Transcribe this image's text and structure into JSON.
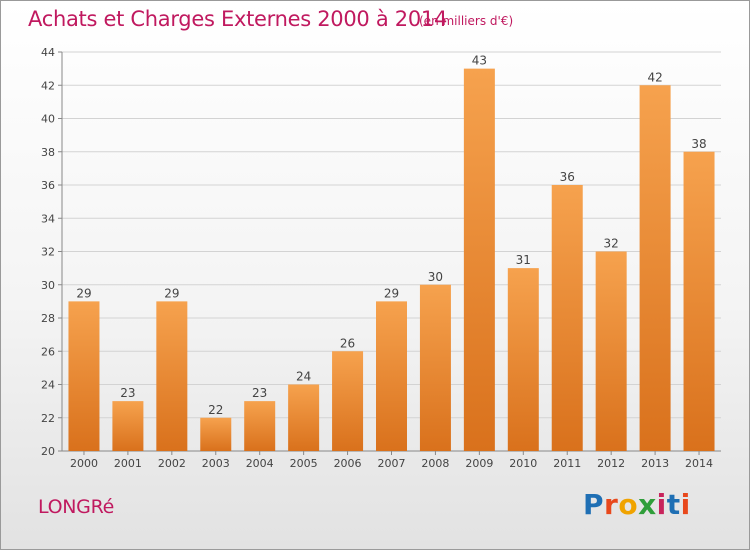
{
  "header": {
    "title": "Achats et Charges Externes 2000 à 2014",
    "subtitle": "(en milliers d'€)"
  },
  "footer": {
    "location": "LONGRé",
    "brand": {
      "text": "Proxiti",
      "letter_colors": [
        "#1f6fb4",
        "#e8481c",
        "#f0a300",
        "#2f9e3a",
        "#c8245c",
        "#1f6fb4",
        "#e8481c"
      ]
    }
  },
  "colors": {
    "bar_top": "#f6a24e",
    "bar_bottom": "#d9711c",
    "label": "#444444",
    "grid": "#d3d3d3"
  },
  "chart_data": {
    "type": "bar",
    "title": "Achats et Charges Externes 2000 à 2014",
    "subtitle": "(en milliers d'€)",
    "xlabel": "",
    "ylabel": "",
    "categories": [
      "2000",
      "2001",
      "2002",
      "2003",
      "2004",
      "2005",
      "2006",
      "2007",
      "2008",
      "2009",
      "2010",
      "2011",
      "2012",
      "2013",
      "2014"
    ],
    "values": [
      29,
      23,
      29,
      22,
      23,
      24,
      26,
      29,
      30,
      43,
      31,
      36,
      32,
      42,
      38
    ],
    "ylim": [
      20,
      44
    ],
    "yticks": [
      20,
      22,
      24,
      26,
      28,
      30,
      32,
      34,
      36,
      38,
      40,
      42,
      44
    ],
    "grid": true,
    "data_labels": true
  }
}
